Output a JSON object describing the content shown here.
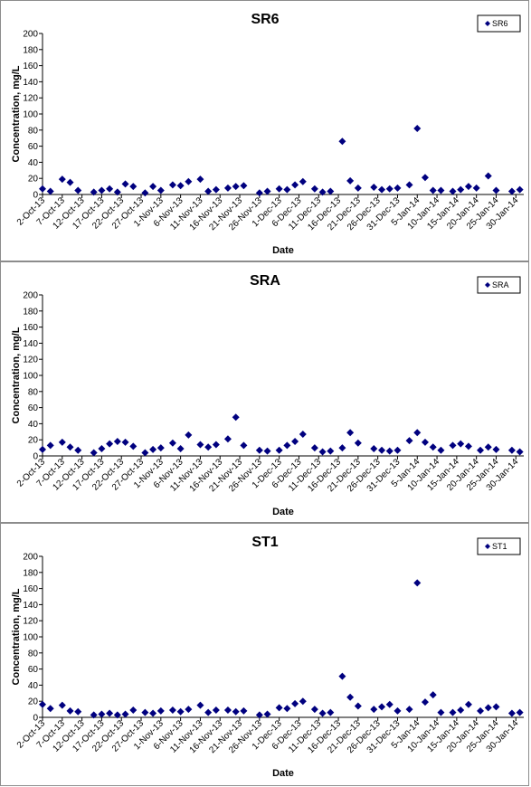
{
  "chart_data": [
    {
      "type": "scatter",
      "title": "SR6",
      "xlabel": "Date",
      "ylabel": "Concentration, mg/L",
      "ylim": [
        0,
        200
      ],
      "yticks": [
        0,
        20,
        40,
        60,
        80,
        100,
        120,
        140,
        160,
        180,
        200
      ],
      "xticks": [
        "2-Oct-13",
        "7-Oct-13",
        "12-Oct-13",
        "17-Oct-13",
        "22-Oct-13",
        "27-Oct-13",
        "1-Nov-13",
        "6-Nov-13",
        "11-Nov-13",
        "16-Nov-13",
        "21-Nov-13",
        "26-Nov-13",
        "1-Dec-13",
        "6-Dec-13",
        "11-Dec-13",
        "16-Dec-13",
        "21-Dec-13",
        "26-Dec-13",
        "31-Dec-13",
        "5-Jan-14",
        "10-Jan-14",
        "15-Jan-14",
        "20-Jan-14",
        "25-Jan-14",
        "30-Jan-14"
      ],
      "xrange": [
        "2013-10-02",
        "2014-02-01"
      ],
      "grid": false,
      "legend": "top-right",
      "marker_color": "#00007f",
      "series": [
        {
          "name": "SR6",
          "points": [
            [
              "2013-10-02",
              7
            ],
            [
              "2013-10-04",
              4
            ],
            [
              "2013-10-07",
              19
            ],
            [
              "2013-10-09",
              15
            ],
            [
              "2013-10-11",
              5
            ],
            [
              "2013-10-15",
              3
            ],
            [
              "2013-10-17",
              5
            ],
            [
              "2013-10-19",
              7
            ],
            [
              "2013-10-21",
              3
            ],
            [
              "2013-10-23",
              13
            ],
            [
              "2013-10-25",
              10
            ],
            [
              "2013-10-28",
              2
            ],
            [
              "2013-10-30",
              10
            ],
            [
              "2013-11-01",
              5
            ],
            [
              "2013-11-04",
              12
            ],
            [
              "2013-11-06",
              11
            ],
            [
              "2013-11-08",
              16
            ],
            [
              "2013-11-11",
              19
            ],
            [
              "2013-11-13",
              4
            ],
            [
              "2013-11-15",
              6
            ],
            [
              "2013-11-18",
              8
            ],
            [
              "2013-11-20",
              10
            ],
            [
              "2013-11-22",
              11
            ],
            [
              "2013-11-26",
              2
            ],
            [
              "2013-11-28",
              4
            ],
            [
              "2013-12-01",
              7
            ],
            [
              "2013-12-03",
              6
            ],
            [
              "2013-12-05",
              12
            ],
            [
              "2013-12-07",
              16
            ],
            [
              "2013-12-10",
              7
            ],
            [
              "2013-12-12",
              3
            ],
            [
              "2013-12-14",
              4
            ],
            [
              "2013-12-17",
              66
            ],
            [
              "2013-12-19",
              17
            ],
            [
              "2013-12-21",
              8
            ],
            [
              "2013-12-25",
              9
            ],
            [
              "2013-12-27",
              6
            ],
            [
              "2013-12-29",
              7
            ],
            [
              "2013-12-31",
              8
            ],
            [
              "2014-01-03",
              12
            ],
            [
              "2014-01-05",
              82
            ],
            [
              "2014-01-07",
              21
            ],
            [
              "2014-01-09",
              5
            ],
            [
              "2014-01-11",
              5
            ],
            [
              "2014-01-14",
              4
            ],
            [
              "2014-01-16",
              6
            ],
            [
              "2014-01-18",
              10
            ],
            [
              "2014-01-20",
              8
            ],
            [
              "2014-01-23",
              23
            ],
            [
              "2014-01-25",
              5
            ],
            [
              "2014-01-29",
              4
            ],
            [
              "2014-01-31",
              6
            ]
          ]
        }
      ]
    },
    {
      "type": "scatter",
      "title": "SRA",
      "xlabel": "Date",
      "ylabel": "Concentration, mg/L",
      "ylim": [
        0,
        200
      ],
      "yticks": [
        0,
        20,
        40,
        60,
        80,
        100,
        120,
        140,
        160,
        180,
        200
      ],
      "xticks": [
        "2-Oct-13",
        "7-Oct-13",
        "12-Oct-13",
        "17-Oct-13",
        "22-Oct-13",
        "27-Oct-13",
        "1-Nov-13",
        "6-Nov-13",
        "11-Nov-13",
        "16-Nov-13",
        "21-Nov-13",
        "26-Nov-13",
        "1-Dec-13",
        "6-Dec-13",
        "11-Dec-13",
        "16-Dec-13",
        "21-Dec-13",
        "26-Dec-13",
        "31-Dec-13",
        "5-Jan-14",
        "10-Jan-14",
        "15-Jan-14",
        "20-Jan-14",
        "25-Jan-14",
        "30-Jan-14"
      ],
      "xrange": [
        "2013-10-02",
        "2014-02-01"
      ],
      "grid": false,
      "legend": "top-right",
      "marker_color": "#00007f",
      "series": [
        {
          "name": "SRA",
          "points": [
            [
              "2013-10-02",
              8
            ],
            [
              "2013-10-04",
              13
            ],
            [
              "2013-10-07",
              17
            ],
            [
              "2013-10-09",
              11
            ],
            [
              "2013-10-11",
              7
            ],
            [
              "2013-10-15",
              4
            ],
            [
              "2013-10-17",
              9
            ],
            [
              "2013-10-19",
              15
            ],
            [
              "2013-10-21",
              18
            ],
            [
              "2013-10-23",
              17
            ],
            [
              "2013-10-25",
              12
            ],
            [
              "2013-10-28",
              4
            ],
            [
              "2013-10-30",
              8
            ],
            [
              "2013-11-01",
              10
            ],
            [
              "2013-11-04",
              16
            ],
            [
              "2013-11-06",
              9
            ],
            [
              "2013-11-08",
              26
            ],
            [
              "2013-11-11",
              14
            ],
            [
              "2013-11-13",
              11
            ],
            [
              "2013-11-15",
              14
            ],
            [
              "2013-11-18",
              21
            ],
            [
              "2013-11-20",
              48
            ],
            [
              "2013-11-22",
              13
            ],
            [
              "2013-11-26",
              7
            ],
            [
              "2013-11-28",
              6
            ],
            [
              "2013-12-01",
              7
            ],
            [
              "2013-12-03",
              13
            ],
            [
              "2013-12-05",
              18
            ],
            [
              "2013-12-07",
              27
            ],
            [
              "2013-12-10",
              10
            ],
            [
              "2013-12-12",
              5
            ],
            [
              "2013-12-14",
              6
            ],
            [
              "2013-12-17",
              10
            ],
            [
              "2013-12-19",
              29
            ],
            [
              "2013-12-21",
              16
            ],
            [
              "2013-12-25",
              9
            ],
            [
              "2013-12-27",
              7
            ],
            [
              "2013-12-29",
              6
            ],
            [
              "2013-12-31",
              7
            ],
            [
              "2014-01-03",
              19
            ],
            [
              "2014-01-05",
              29
            ],
            [
              "2014-01-07",
              17
            ],
            [
              "2014-01-09",
              11
            ],
            [
              "2014-01-11",
              7
            ],
            [
              "2014-01-14",
              13
            ],
            [
              "2014-01-16",
              15
            ],
            [
              "2014-01-18",
              12
            ],
            [
              "2014-01-21",
              7
            ],
            [
              "2014-01-23",
              11
            ],
            [
              "2014-01-25",
              8
            ],
            [
              "2014-01-29",
              7
            ],
            [
              "2014-01-31",
              5
            ]
          ]
        }
      ]
    },
    {
      "type": "scatter",
      "title": "ST1",
      "xlabel": "Date",
      "ylabel": "Concentration, mg/L",
      "ylim": [
        0,
        200
      ],
      "yticks": [
        0,
        20,
        40,
        60,
        80,
        100,
        120,
        140,
        160,
        180,
        200
      ],
      "xticks": [
        "2-Oct-13",
        "7-Oct-13",
        "12-Oct-13",
        "17-Oct-13",
        "22-Oct-13",
        "27-Oct-13",
        "1-Nov-13",
        "6-Nov-13",
        "11-Nov-13",
        "16-Nov-13",
        "21-Nov-13",
        "26-Nov-13",
        "1-Dec-13",
        "6-Dec-13",
        "11-Dec-13",
        "16-Dec-13",
        "21-Dec-13",
        "26-Dec-13",
        "31-Dec-13",
        "5-Jan-14",
        "10-Jan-14",
        "15-Jan-14",
        "20-Jan-14",
        "25-Jan-14",
        "30-Jan-14"
      ],
      "xrange": [
        "2013-10-02",
        "2014-02-01"
      ],
      "grid": false,
      "legend": "top-right",
      "marker_color": "#00007f",
      "series": [
        {
          "name": "ST1",
          "points": [
            [
              "2013-10-02",
              16
            ],
            [
              "2013-10-04",
              11
            ],
            [
              "2013-10-07",
              15
            ],
            [
              "2013-10-09",
              8
            ],
            [
              "2013-10-11",
              7
            ],
            [
              "2013-10-15",
              3
            ],
            [
              "2013-10-17",
              4
            ],
            [
              "2013-10-19",
              5
            ],
            [
              "2013-10-21",
              3
            ],
            [
              "2013-10-23",
              4
            ],
            [
              "2013-10-25",
              9
            ],
            [
              "2013-10-28",
              6
            ],
            [
              "2013-10-30",
              5
            ],
            [
              "2013-11-01",
              8
            ],
            [
              "2013-11-04",
              9
            ],
            [
              "2013-11-06",
              7
            ],
            [
              "2013-11-08",
              10
            ],
            [
              "2013-11-11",
              15
            ],
            [
              "2013-11-13",
              6
            ],
            [
              "2013-11-15",
              9
            ],
            [
              "2013-11-18",
              9
            ],
            [
              "2013-11-20",
              7
            ],
            [
              "2013-11-22",
              8
            ],
            [
              "2013-11-26",
              3
            ],
            [
              "2013-11-28",
              4
            ],
            [
              "2013-12-01",
              12
            ],
            [
              "2013-12-03",
              11
            ],
            [
              "2013-12-05",
              17
            ],
            [
              "2013-12-07",
              20
            ],
            [
              "2013-12-10",
              10
            ],
            [
              "2013-12-12",
              5
            ],
            [
              "2013-12-14",
              6
            ],
            [
              "2013-12-17",
              51
            ],
            [
              "2013-12-19",
              25
            ],
            [
              "2013-12-21",
              14
            ],
            [
              "2013-12-25",
              10
            ],
            [
              "2013-12-27",
              13
            ],
            [
              "2013-12-29",
              16
            ],
            [
              "2013-12-31",
              8
            ],
            [
              "2014-01-03",
              10
            ],
            [
              "2014-01-05",
              167
            ],
            [
              "2014-01-07",
              19
            ],
            [
              "2014-01-09",
              28
            ],
            [
              "2014-01-11",
              6
            ],
            [
              "2014-01-14",
              6
            ],
            [
              "2014-01-16",
              9
            ],
            [
              "2014-01-18",
              16
            ],
            [
              "2014-01-21",
              8
            ],
            [
              "2014-01-23",
              12
            ],
            [
              "2014-01-25",
              13
            ],
            [
              "2014-01-29",
              5
            ],
            [
              "2014-01-31",
              6
            ]
          ]
        }
      ]
    }
  ]
}
